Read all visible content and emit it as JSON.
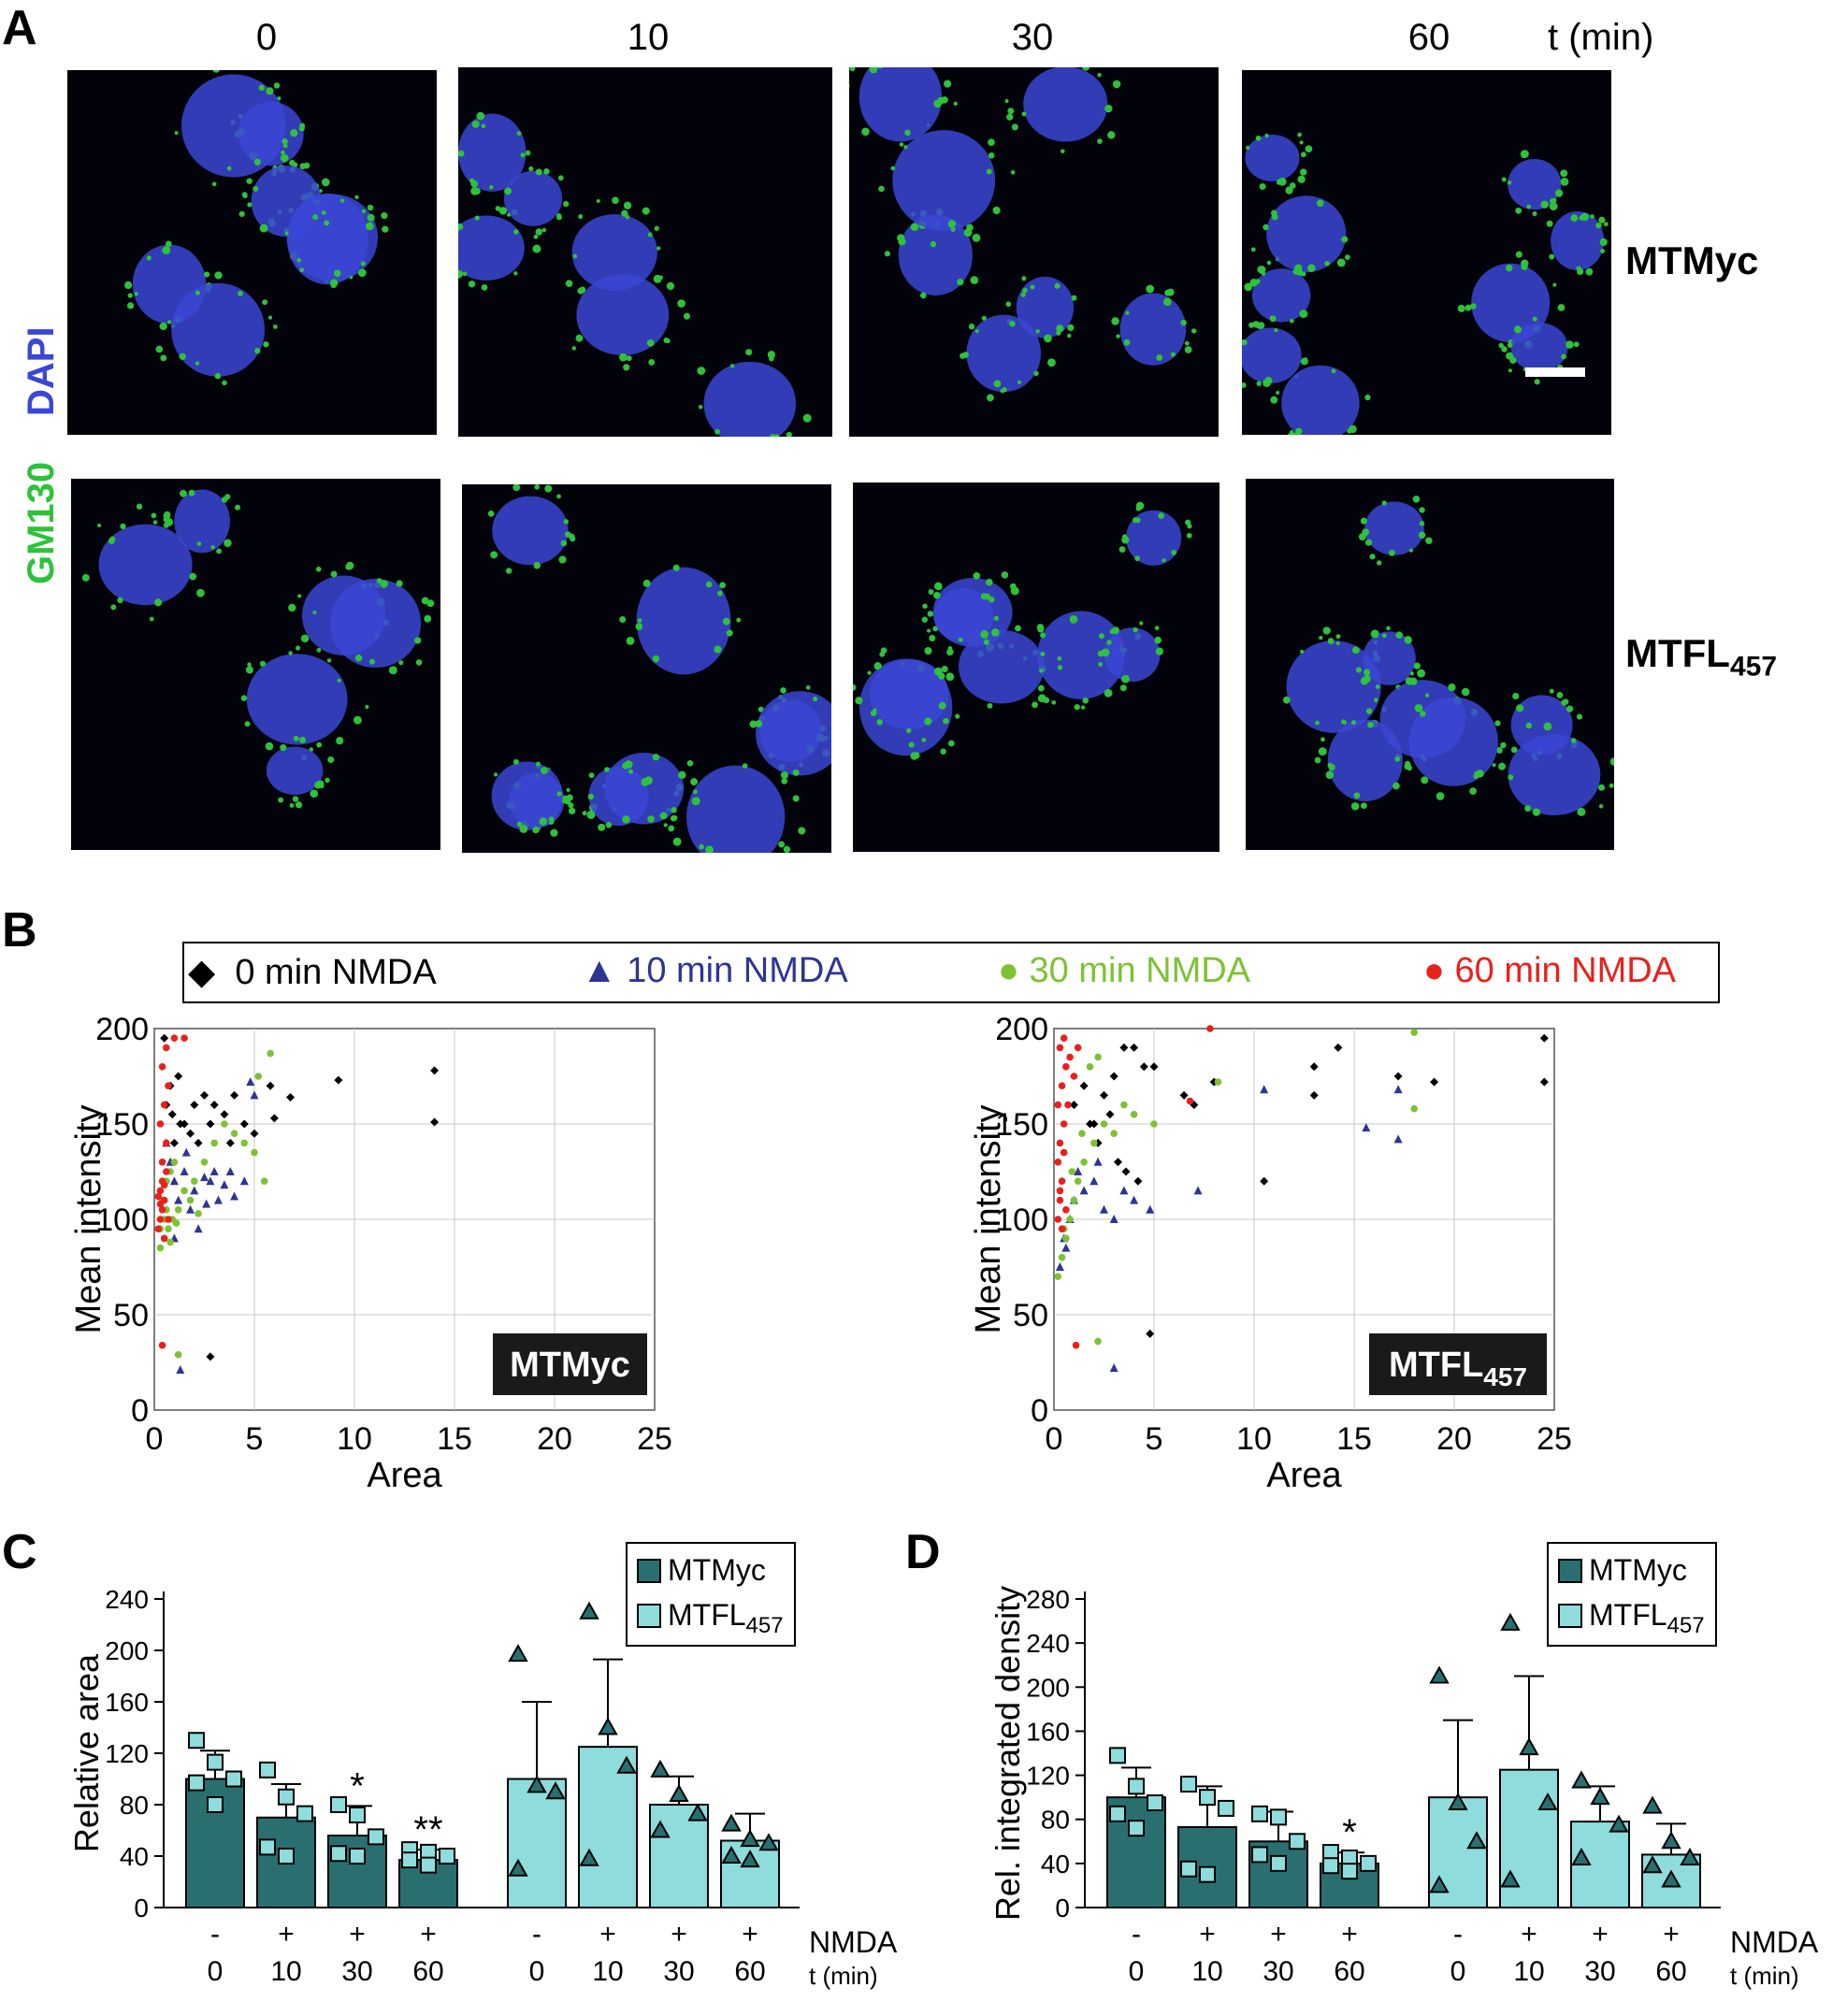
{
  "panel_labels": {
    "a": "A",
    "b": "B",
    "c": "C",
    "d": "D"
  },
  "panel_a": {
    "time_header": "t (min)",
    "times": [
      "0",
      "10",
      "30",
      "60"
    ],
    "rows": [
      {
        "label_main": "MTMyc",
        "label_sub": ""
      },
      {
        "label_main": "MTFL",
        "label_sub": "457"
      }
    ],
    "stain_labels": {
      "dapi": "DAPI",
      "gm130": "GM130"
    },
    "colors": {
      "dapi": "#3b46d6",
      "gm130": "#2ec23a"
    }
  },
  "panel_b_legend": [
    {
      "symbol": "◆",
      "label": "0 min NMDA",
      "color": "#000000"
    },
    {
      "symbol": "▲",
      "label": "10 min NMDA",
      "color": "#2e3592"
    },
    {
      "symbol": "●",
      "label": "30 min NMDA",
      "color": "#7ec234"
    },
    {
      "symbol": "●",
      "label": "60 min NMDA",
      "color": "#e8211d"
    }
  ],
  "panel_cd_legend": [
    {
      "label_main": "MTMyc",
      "label_sub": "",
      "color": "#2a6f6f"
    },
    {
      "label_main": "MTFL",
      "label_sub": "457",
      "color": "#8fdcdc"
    }
  ],
  "chart_data": [
    {
      "type": "scatter",
      "panel": "B-left",
      "box_label_main": "MTMyc",
      "box_label_sub": "",
      "xlabel": "Area",
      "ylabel": "Mean intensity",
      "xlim": [
        0,
        25
      ],
      "ylim": [
        0,
        200
      ],
      "xticks": [
        "0",
        "5",
        "10",
        "15",
        "20",
        "25"
      ],
      "yticks": [
        "0",
        "50",
        "100",
        "150",
        "200"
      ],
      "grid": true,
      "series": [
        {
          "name": "0 min NMDA",
          "color": "#000000",
          "marker": "diamond",
          "points": [
            [
              0.5,
              195
            ],
            [
              0.8,
              170
            ],
            [
              1.2,
              175
            ],
            [
              1.5,
              150
            ],
            [
              2.0,
              160
            ],
            [
              2.5,
              165
            ],
            [
              3.0,
              160
            ],
            [
              3.5,
              155
            ],
            [
              4.0,
              165
            ],
            [
              4.5,
              150
            ],
            [
              1.0,
              140
            ],
            [
              1.8,
              145
            ],
            [
              2.8,
              150
            ],
            [
              3.8,
              140
            ],
            [
              5.0,
              145
            ],
            [
              5.8,
              170
            ],
            [
              6.0,
              153
            ],
            [
              6.8,
              164
            ],
            [
              9.2,
              173
            ],
            [
              14.0,
              178
            ],
            [
              14.0,
              151
            ],
            [
              2.8,
              28
            ],
            [
              0.6,
              160
            ],
            [
              1.3,
              150
            ],
            [
              2.2,
              140
            ],
            [
              0.9,
              155
            ]
          ]
        },
        {
          "name": "10 min NMDA",
          "color": "#2e3592",
          "marker": "triangle",
          "points": [
            [
              1.3,
              21
            ],
            [
              1.0,
              120
            ],
            [
              1.5,
              125
            ],
            [
              2.0,
              115
            ],
            [
              2.5,
              122
            ],
            [
              3.0,
              125
            ],
            [
              3.5,
              118
            ],
            [
              4.0,
              112
            ],
            [
              4.5,
              120
            ],
            [
              1.2,
              110
            ],
            [
              2.2,
              95
            ],
            [
              0.8,
              130
            ],
            [
              1.8,
              105
            ],
            [
              2.8,
              120
            ],
            [
              3.2,
              110
            ],
            [
              4.8,
              172
            ],
            [
              5.0,
              165
            ],
            [
              1.0,
              90
            ],
            [
              2.6,
              108
            ],
            [
              1.6,
              135
            ],
            [
              0.6,
              140
            ],
            [
              3.8,
              125
            ]
          ]
        },
        {
          "name": "30 min NMDA",
          "color": "#7ec234",
          "marker": "circle",
          "points": [
            [
              0.3,
              85
            ],
            [
              0.5,
              90
            ],
            [
              0.7,
              95
            ],
            [
              0.9,
              100
            ],
            [
              0.4,
              110
            ],
            [
              0.6,
              120
            ],
            [
              0.8,
              125
            ],
            [
              1.0,
              130
            ],
            [
              1.2,
              105
            ],
            [
              1.5,
              115
            ],
            [
              1.8,
              110
            ],
            [
              2.0,
              120
            ],
            [
              2.5,
              130
            ],
            [
              3.0,
              140
            ],
            [
              3.5,
              150
            ],
            [
              4.0,
              145
            ],
            [
              4.5,
              140
            ],
            [
              5.0,
              135
            ],
            [
              5.5,
              120
            ],
            [
              5.8,
              187
            ],
            [
              5.2,
              175
            ],
            [
              1.2,
              29
            ],
            [
              0.5,
              100
            ],
            [
              0.3,
              95
            ],
            [
              0.6,
              105
            ],
            [
              1.1,
              98
            ],
            [
              0.8,
              88
            ],
            [
              2.2,
              103
            ]
          ]
        },
        {
          "name": "60 min NMDA",
          "color": "#e8211d",
          "marker": "circle",
          "points": [
            [
              0.3,
              100
            ],
            [
              0.4,
              105
            ],
            [
              0.5,
              110
            ],
            [
              0.3,
              115
            ],
            [
              0.4,
              120
            ],
            [
              0.6,
              125
            ],
            [
              0.2,
              95
            ],
            [
              0.5,
              90
            ],
            [
              0.7,
              100
            ],
            [
              0.4,
              130
            ],
            [
              0.6,
              140
            ],
            [
              0.3,
              150
            ],
            [
              0.5,
              160
            ],
            [
              0.7,
              170
            ],
            [
              0.4,
              180
            ],
            [
              0.6,
              190
            ],
            [
              1.0,
              195
            ],
            [
              1.5,
              195
            ],
            [
              0.4,
              34
            ],
            [
              0.3,
              108
            ],
            [
              0.5,
              118
            ],
            [
              0.2,
              112
            ]
          ]
        }
      ]
    },
    {
      "type": "scatter",
      "panel": "B-right",
      "box_label_main": "MTFL",
      "box_label_sub": "457",
      "xlabel": "Area",
      "ylabel": "Mean intensity",
      "xlim": [
        0,
        25
      ],
      "ylim": [
        0,
        200
      ],
      "xticks": [
        "0",
        "5",
        "10",
        "15",
        "20",
        "25"
      ],
      "yticks": [
        "0",
        "50",
        "100",
        "150",
        "200"
      ],
      "grid": true,
      "series": [
        {
          "name": "0 min NMDA",
          "color": "#000000",
          "marker": "diamond",
          "points": [
            [
              1.0,
              160
            ],
            [
              1.5,
              170
            ],
            [
              2.0,
              150
            ],
            [
              2.5,
              165
            ],
            [
              3.0,
              175
            ],
            [
              3.5,
              190
            ],
            [
              4.0,
              190
            ],
            [
              4.5,
              180
            ],
            [
              5.0,
              180
            ],
            [
              2.2,
              140
            ],
            [
              3.2,
              130
            ],
            [
              4.2,
              120
            ],
            [
              3.6,
              125
            ],
            [
              6.5,
              165
            ],
            [
              7.0,
              160
            ],
            [
              8.0,
              172
            ],
            [
              10.5,
              120
            ],
            [
              13.0,
              180
            ],
            [
              13.0,
              165
            ],
            [
              14.2,
              190
            ],
            [
              17.2,
              175
            ],
            [
              19.0,
              172
            ],
            [
              24.5,
              195
            ],
            [
              24.5,
              172
            ],
            [
              4.8,
              40
            ],
            [
              1.8,
              150
            ],
            [
              2.8,
              155
            ]
          ]
        },
        {
          "name": "10 min NMDA",
          "color": "#2e3592",
          "marker": "triangle",
          "points": [
            [
              0.3,
              75
            ],
            [
              0.5,
              90
            ],
            [
              0.8,
              100
            ],
            [
              1.0,
              110
            ],
            [
              1.5,
              115
            ],
            [
              2.0,
              120
            ],
            [
              2.5,
              105
            ],
            [
              3.0,
              100
            ],
            [
              3.5,
              115
            ],
            [
              4.0,
              110
            ],
            [
              4.8,
              105
            ],
            [
              7.2,
              115
            ],
            [
              10.5,
              168
            ],
            [
              15.6,
              148
            ],
            [
              17.2,
              168
            ],
            [
              17.2,
              142
            ],
            [
              3.0,
              22
            ],
            [
              1.2,
              125
            ],
            [
              2.2,
              130
            ],
            [
              0.6,
              85
            ]
          ]
        },
        {
          "name": "30 min NMDA",
          "color": "#7ec234",
          "marker": "circle",
          "points": [
            [
              0.2,
              70
            ],
            [
              0.4,
              80
            ],
            [
              0.6,
              90
            ],
            [
              0.8,
              100
            ],
            [
              1.0,
              110
            ],
            [
              1.2,
              120
            ],
            [
              1.5,
              130
            ],
            [
              2.0,
              140
            ],
            [
              2.5,
              150
            ],
            [
              3.0,
              145
            ],
            [
              3.5,
              160
            ],
            [
              4.0,
              155
            ],
            [
              5.0,
              150
            ],
            [
              1.8,
              180
            ],
            [
              2.2,
              185
            ],
            [
              8.2,
              172
            ],
            [
              18.0,
              198
            ],
            [
              18.0,
              158
            ],
            [
              2.2,
              36
            ],
            [
              0.5,
              95
            ],
            [
              0.9,
              125
            ],
            [
              1.4,
              145
            ]
          ]
        },
        {
          "name": "60 min NMDA",
          "color": "#e8211d",
          "marker": "circle",
          "points": [
            [
              0.2,
              100
            ],
            [
              0.3,
              110
            ],
            [
              0.4,
              120
            ],
            [
              0.2,
              130
            ],
            [
              0.3,
              140
            ],
            [
              0.5,
              150
            ],
            [
              0.2,
              160
            ],
            [
              0.4,
              170
            ],
            [
              0.6,
              180
            ],
            [
              0.3,
              190
            ],
            [
              0.5,
              195
            ],
            [
              0.8,
              185
            ],
            [
              1.0,
              175
            ],
            [
              1.2,
              190
            ],
            [
              0.4,
              95
            ],
            [
              0.6,
              105
            ],
            [
              7.8,
              200
            ],
            [
              6.8,
              162
            ],
            [
              1.1,
              34
            ],
            [
              0.3,
              115
            ],
            [
              0.5,
              135
            ],
            [
              0.7,
              160
            ]
          ]
        }
      ]
    },
    {
      "type": "bar",
      "panel": "C",
      "ylabel": "Relative area",
      "ylim": [
        0,
        240
      ],
      "yticks": [
        "0",
        "40",
        "80",
        "120",
        "160",
        "200",
        "240"
      ],
      "nmda_label": "NMDA",
      "time_label": "t (min)",
      "nmda": [
        "-",
        "+",
        "+",
        "+",
        "-",
        "+",
        "+",
        "+"
      ],
      "categories": [
        "0",
        "10",
        "30",
        "60",
        "0",
        "10",
        "30",
        "60"
      ],
      "groups": [
        "MTMyc",
        "MTMyc",
        "MTMyc",
        "MTMyc",
        "MTFL457",
        "MTFL457",
        "MTFL457",
        "MTFL457"
      ],
      "values": [
        100,
        70,
        56,
        37,
        100,
        125,
        80,
        52
      ],
      "errors": [
        22,
        26,
        23,
        8,
        60,
        68,
        22,
        21
      ],
      "significance": [
        "",
        "",
        "*",
        "**",
        "",
        "",
        "",
        ""
      ],
      "points": [
        [
          130,
          113,
          100,
          97,
          80
        ],
        [
          107,
          86,
          73,
          47,
          40
        ],
        [
          80,
          72,
          55,
          42,
          40
        ],
        [
          45,
          43,
          40,
          37,
          33
        ]
      ],
      "points_alt": [
        [
          197,
          95,
          90,
          30
        ],
        [
          230,
          140,
          110,
          38
        ],
        [
          107,
          88,
          73,
          60
        ],
        [
          65,
          53,
          50,
          40,
          37
        ]
      ]
    },
    {
      "type": "bar",
      "panel": "D",
      "ylabel": "Rel. integrated density",
      "ylim": [
        0,
        280
      ],
      "yticks": [
        "0",
        "40",
        "80",
        "120",
        "160",
        "200",
        "240",
        "280"
      ],
      "nmda_label": "NMDA",
      "time_label": "t (min)",
      "nmda": [
        "-",
        "+",
        "+",
        "+",
        "-",
        "+",
        "+",
        "+"
      ],
      "categories": [
        "0",
        "10",
        "30",
        "60",
        "0",
        "10",
        "30",
        "60"
      ],
      "groups": [
        "MTMyc",
        "MTMyc",
        "MTMyc",
        "MTMyc",
        "MTFL457",
        "MTFL457",
        "MTFL457",
        "MTFL457"
      ],
      "values": [
        100,
        73,
        60,
        40,
        100,
        125,
        78,
        48
      ],
      "errors": [
        27,
        37,
        27,
        10,
        70,
        85,
        32,
        28
      ],
      "significance": [
        "",
        "",
        "",
        "*",
        "",
        "",
        "",
        ""
      ],
      "points": [
        [
          138,
          110,
          95,
          85,
          72
        ],
        [
          112,
          100,
          90,
          35,
          30
        ],
        [
          85,
          82,
          60,
          48,
          40
        ],
        [
          50,
          45,
          40,
          38,
          33
        ]
      ],
      "points_alt": [
        [
          210,
          95,
          60,
          20
        ],
        [
          258,
          145,
          95,
          25
        ],
        [
          115,
          100,
          75,
          45
        ],
        [
          92,
          60,
          45,
          38,
          25
        ]
      ]
    }
  ]
}
